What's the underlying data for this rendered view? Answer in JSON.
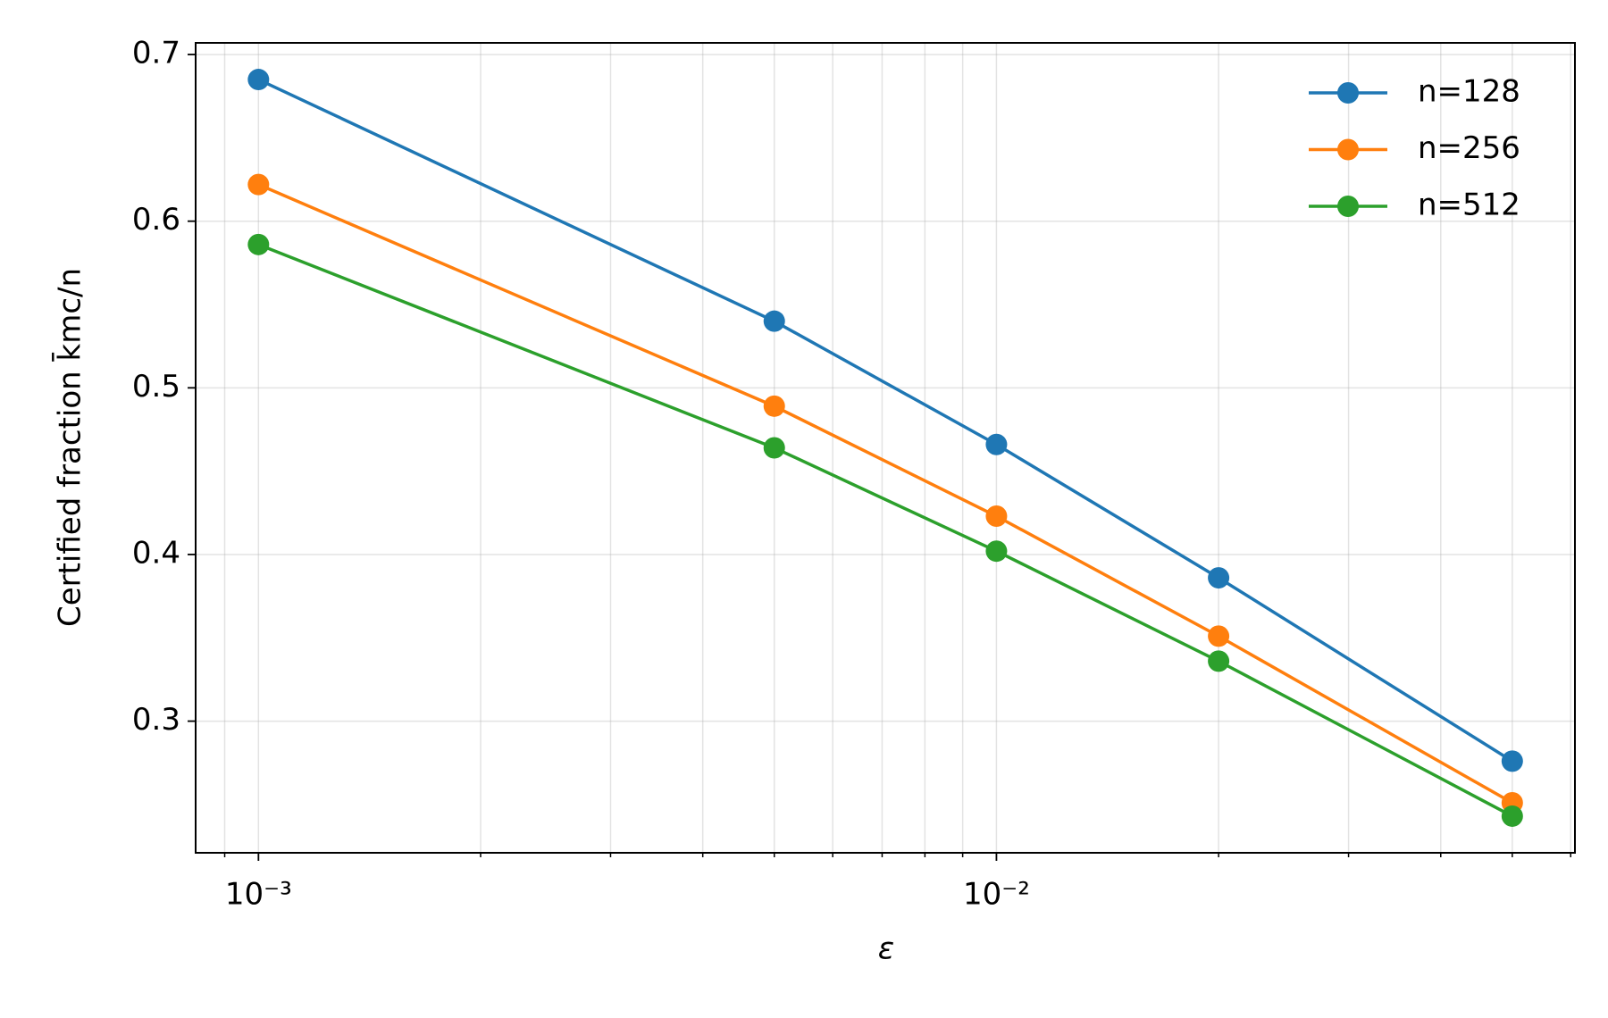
{
  "chart_data": {
    "type": "line",
    "xlabel": "ε",
    "ylabel": "Certified fraction k̄mc/n",
    "x": [
      0.001,
      0.005,
      0.01,
      0.02,
      0.05
    ],
    "series": [
      {
        "name": "n=128",
        "color": "#1f77b4",
        "values": [
          0.685,
          0.54,
          0.466,
          0.386,
          0.276
        ]
      },
      {
        "name": "n=256",
        "color": "#ff7f0e",
        "values": [
          0.622,
          0.489,
          0.423,
          0.351,
          0.251
        ]
      },
      {
        "name": "n=512",
        "color": "#2ca02c",
        "values": [
          0.586,
          0.464,
          0.402,
          0.336,
          0.243
        ]
      }
    ],
    "xscale": "log",
    "xlim": [
      0.000822,
      0.0608
    ],
    "xticks": [
      {
        "value": 0.001,
        "label": "10⁻³"
      },
      {
        "value": 0.01,
        "label": "10⁻²"
      }
    ],
    "xminorticks": [
      0.0009,
      0.002,
      0.003,
      0.004,
      0.005,
      0.006,
      0.007,
      0.008,
      0.009,
      0.02,
      0.03,
      0.04,
      0.05,
      0.06
    ],
    "ylim": [
      0.221,
      0.707
    ],
    "yticks": [
      0.3,
      0.4,
      0.5,
      0.6,
      0.7
    ],
    "grid": true,
    "legend": "upper right"
  }
}
